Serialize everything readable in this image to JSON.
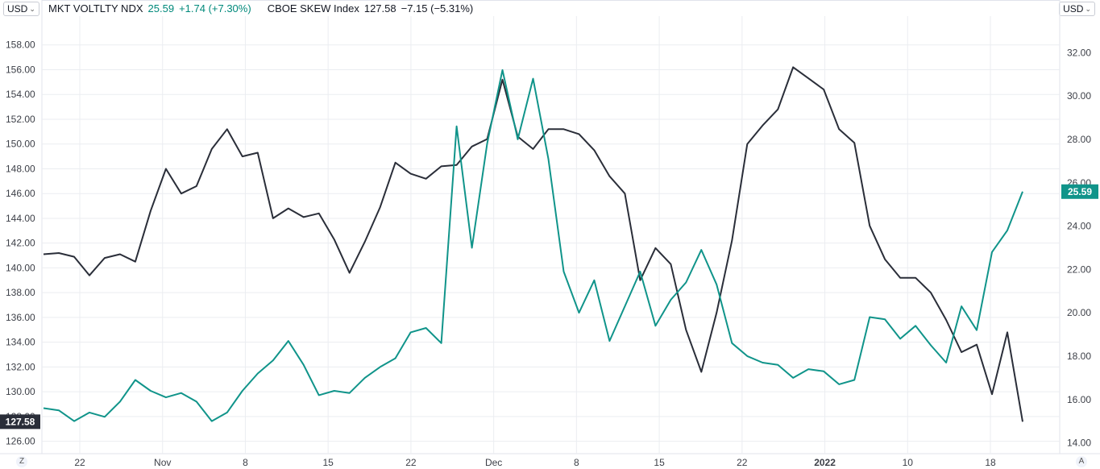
{
  "header": {
    "currency_left": "USD",
    "currency_right": "USD",
    "symbol1_name": "MKT VOLTLTY NDX",
    "symbol1_value": "25.59",
    "symbol1_change": "+1.74 (+7.30%)",
    "symbol2_name": "CBOE SKEW Index",
    "symbol2_value": "127.58",
    "symbol2_change": "−7.15 (−5.31%)"
  },
  "footer": {
    "left_button": "Z",
    "right_button": "A"
  },
  "colors": {
    "skew": "#2a2e39",
    "vol": "#10948a",
    "grid": "#ebedf1",
    "axis_text": "#3c3f47"
  },
  "icons": {
    "currency_dropdown": "chevron-down-icon"
  },
  "chart_data": {
    "type": "line",
    "x_tick_labels": [
      "22",
      "Nov",
      "8",
      "15",
      "22",
      "Dec",
      "8",
      "15",
      "22",
      "2022",
      "10",
      "18"
    ],
    "left_axis": {
      "ylim": [
        125,
        160
      ],
      "tick_labels": [
        "126.00",
        "128.00",
        "130.00",
        "132.00",
        "134.00",
        "136.00",
        "138.00",
        "140.00",
        "142.00",
        "144.00",
        "146.00",
        "148.00",
        "150.00",
        "152.00",
        "154.00",
        "156.00",
        "158.00"
      ],
      "last_value_label": "127.58"
    },
    "right_axis": {
      "ylim": [
        13.5,
        33.5
      ],
      "tick_labels": [
        "14.00",
        "16.00",
        "18.00",
        "20.00",
        "22.00",
        "24.00",
        "26.00",
        "28.00",
        "30.00",
        "32.00"
      ],
      "last_value_label": "25.59"
    },
    "grid": true,
    "series": [
      {
        "name": "CBOE SKEW Index",
        "axis": "left",
        "values": [
          141.1,
          141.2,
          140.9,
          139.4,
          140.8,
          141.1,
          140.5,
          144.6,
          148.0,
          146.0,
          146.6,
          149.6,
          151.2,
          149.0,
          149.3,
          144.0,
          144.8,
          144.1,
          144.4,
          142.3,
          139.6,
          142.1,
          144.9,
          148.5,
          147.6,
          147.2,
          148.2,
          148.3,
          149.8,
          150.4,
          155.2,
          150.6,
          149.6,
          151.2,
          151.2,
          150.8,
          149.5,
          147.4,
          146.0,
          139.0,
          141.6,
          140.3,
          135.0,
          131.6,
          136.4,
          142.2,
          150.0,
          151.5,
          152.8,
          156.2,
          155.3,
          154.4,
          151.2,
          150.1,
          143.4,
          140.7,
          139.2,
          139.2,
          138.0,
          135.8,
          133.2,
          133.8,
          129.8,
          134.8,
          127.58
        ]
      },
      {
        "name": "MKT VOLTLTY NDX",
        "axis": "right",
        "values": [
          15.6,
          15.5,
          15.0,
          15.4,
          15.2,
          15.9,
          16.9,
          16.4,
          16.1,
          16.3,
          15.9,
          15.0,
          15.4,
          16.4,
          17.2,
          17.8,
          18.7,
          17.6,
          16.2,
          16.4,
          16.3,
          17.0,
          17.5,
          17.9,
          19.1,
          19.3,
          18.6,
          28.6,
          23.0,
          27.8,
          31.2,
          28.0,
          30.8,
          27.1,
          21.9,
          20.0,
          21.5,
          18.7,
          20.3,
          21.9,
          19.4,
          20.6,
          21.4,
          22.9,
          21.3,
          18.6,
          18.0,
          17.7,
          17.6,
          17.0,
          17.4,
          17.3,
          16.7,
          16.9,
          19.8,
          19.7,
          18.8,
          19.4,
          18.5,
          17.7,
          20.3,
          19.2,
          22.8,
          23.8,
          25.59
        ]
      }
    ]
  }
}
